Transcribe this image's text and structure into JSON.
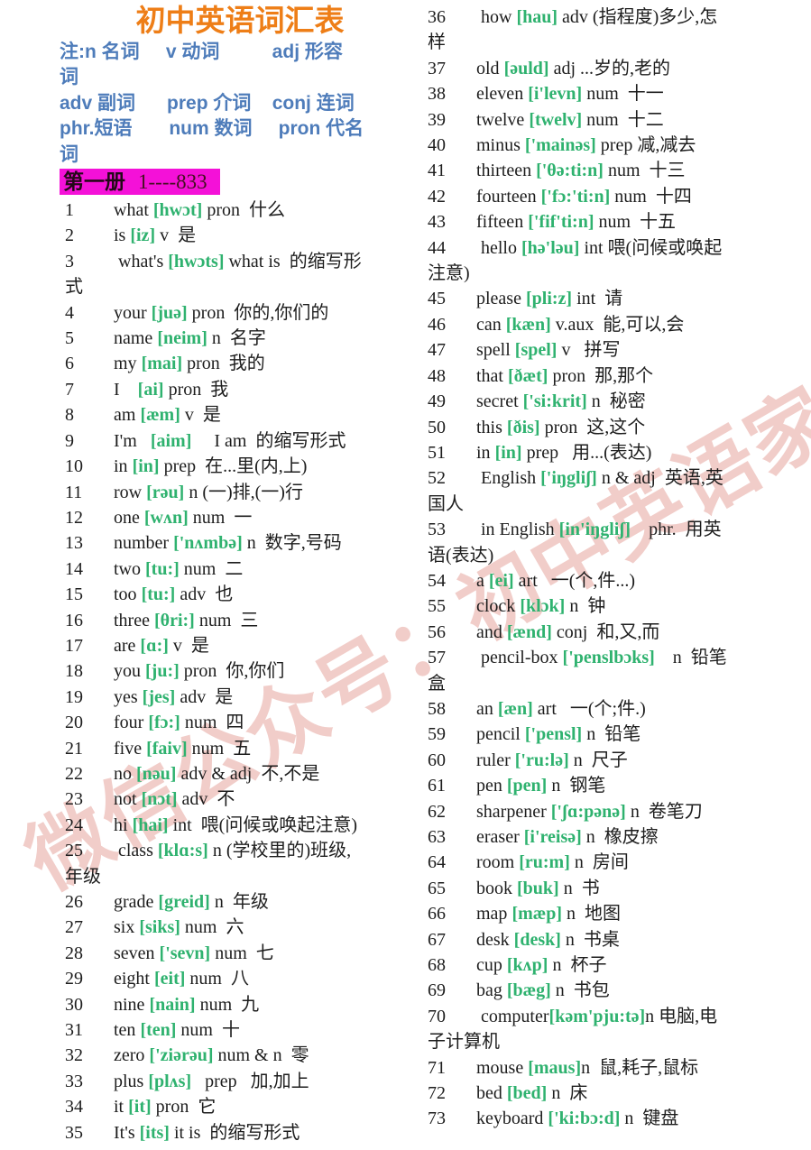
{
  "title": "初中英语词汇表",
  "watermark": "微信公众号：初中英语家长",
  "colors": {
    "title_orange": "#ee7e17",
    "notes_blue": "#4e7cba",
    "phonetic_green": "#2fb26f",
    "highlight_magenta": "#f411d8",
    "watermark_pink": "#db8278",
    "body_text": "#1d1d1d"
  },
  "notes_lines": [
    "注:n 名词     v 动词          adj 形容",
    "词",
    "adv 副词      prep 介词    conj 连词",
    "phr.短语       num 数词     pron 代名",
    "词"
  ],
  "volume": {
    "label": "第一册",
    "range": "1----833"
  },
  "left_entries": [
    {
      "num": "1",
      "pre": "what ",
      "phon": "[hwɔt]",
      "post": " pron  什么"
    },
    {
      "num": "2",
      "pre": "is ",
      "phon": "[iz]",
      "post": " v  是"
    },
    {
      "num": "3",
      "pre": " what's ",
      "phon": "[hwɔts]",
      "post": " what is  的缩写形\n式"
    },
    {
      "num": "4",
      "pre": "your ",
      "phon": "[juə]",
      "post": " pron  你的,你们的"
    },
    {
      "num": "5",
      "pre": "name ",
      "phon": "[neim]",
      "post": " n  名字"
    },
    {
      "num": "6",
      "pre": "my ",
      "phon": "[mai]",
      "post": " pron  我的"
    },
    {
      "num": "7",
      "pre": "I    ",
      "phon": "[ai]",
      "post": " pron  我"
    },
    {
      "num": "8",
      "pre": "am ",
      "phon": "[æm]",
      "post": " v  是"
    },
    {
      "num": "9",
      "pre": "I'm   ",
      "phon": "[aim]",
      "post": "     I am  的缩写形式"
    },
    {
      "num": "10",
      "pre": "in ",
      "phon": "[in]",
      "post": " prep  在...里(内,上)"
    },
    {
      "num": "11",
      "pre": "row ",
      "phon": "[rəu]",
      "post": " n (一)排,(一)行"
    },
    {
      "num": "12",
      "pre": "one ",
      "phon": "[wʌn]",
      "post": " num  一"
    },
    {
      "num": "13",
      "pre": "number ",
      "phon": "['nʌmbə]",
      "post": " n  数字,号码"
    },
    {
      "num": "14",
      "pre": "two ",
      "phon": "[tu:]",
      "post": " num  二"
    },
    {
      "num": "15",
      "pre": "too ",
      "phon": "[tu:]",
      "post": " adv  也"
    },
    {
      "num": "16",
      "pre": "three ",
      "phon": "[θri:]",
      "post": " num  三"
    },
    {
      "num": "17",
      "pre": "are ",
      "phon": "[ɑ:]",
      "post": " v  是"
    },
    {
      "num": "18",
      "pre": "you ",
      "phon": "[ju:]",
      "post": " pron  你,你们"
    },
    {
      "num": "19",
      "pre": "yes ",
      "phon": "[jes]",
      "post": " adv  是"
    },
    {
      "num": "20",
      "pre": "four ",
      "phon": "[fɔ:]",
      "post": " num  四"
    },
    {
      "num": "21",
      "pre": "five ",
      "phon": "[faiv]",
      "post": " num  五"
    },
    {
      "num": "22",
      "pre": "no ",
      "phon": "[nəu]",
      "post": " adv & adj  不,不是"
    },
    {
      "num": "23",
      "pre": "not ",
      "phon": "[nɔt]",
      "post": " adv  不"
    },
    {
      "num": "24",
      "pre": "hi ",
      "phon": "[hai]",
      "post": " int  喂(问候或唤起注意)"
    },
    {
      "num": "25",
      "pre": " class ",
      "phon": "[klɑ:s]",
      "post": " n (学校里的)班级,\n年级"
    },
    {
      "num": "26",
      "pre": "grade ",
      "phon": "[greid]",
      "post": " n  年级"
    },
    {
      "num": "27",
      "pre": "six ",
      "phon": "[siks]",
      "post": " num  六"
    },
    {
      "num": "28",
      "pre": "seven ",
      "phon": "['sevn]",
      "post": " num  七"
    },
    {
      "num": "29",
      "pre": "eight ",
      "phon": "[eit]",
      "post": " num  八"
    },
    {
      "num": "30",
      "pre": "nine ",
      "phon": "[nain]",
      "post": " num  九"
    },
    {
      "num": "31",
      "pre": "ten ",
      "phon": "[ten]",
      "post": " num  十"
    },
    {
      "num": "32",
      "pre": "zero ",
      "phon": "['ziərəu]",
      "post": " num & n  零"
    },
    {
      "num": "33",
      "pre": "plus ",
      "phon": "[plʌs]",
      "post": "   prep   加,加上"
    },
    {
      "num": "34",
      "pre": "it ",
      "phon": "[it]",
      "post": " pron  它"
    },
    {
      "num": "35",
      "pre": "It's ",
      "phon": "[its]",
      "post": " it is  的缩写形式"
    }
  ],
  "right_entries": [
    {
      "num": "36",
      "pre": " how ",
      "phon": "[hau]",
      "post": " adv (指程度)多少,怎\n样"
    },
    {
      "num": "37",
      "pre": "old ",
      "phon": "[əuld]",
      "post": " adj ...岁的,老的"
    },
    {
      "num": "38",
      "pre": "eleven ",
      "phon": "[i'levn]",
      "post": " num  十一"
    },
    {
      "num": "39",
      "pre": "twelve ",
      "phon": "[twelv]",
      "post": " num  十二"
    },
    {
      "num": "40",
      "pre": "minus ",
      "phon": "['mainəs]",
      "post": " prep 减,减去"
    },
    {
      "num": "41",
      "pre": "thirteen ",
      "phon": "['θə:ti:n]",
      "post": " num  十三"
    },
    {
      "num": "42",
      "pre": "fourteen ",
      "phon": "['fɔ:'ti:n]",
      "post": " num  十四"
    },
    {
      "num": "43",
      "pre": "fifteen ",
      "phon": "['fif'ti:n]",
      "post": " num  十五"
    },
    {
      "num": "44",
      "pre": " hello ",
      "phon": "[hə'ləu]",
      "post": " int 喂(问候或唤起\n注意)"
    },
    {
      "num": "45",
      "pre": "please ",
      "phon": "[pli:z]",
      "post": " int  请"
    },
    {
      "num": "46",
      "pre": "can ",
      "phon": "[kæn]",
      "post": " v.aux  能,可以,会"
    },
    {
      "num": "47",
      "pre": "spell ",
      "phon": "[spel]",
      "post": " v   拼写"
    },
    {
      "num": "48",
      "pre": "that ",
      "phon": "[ðæt]",
      "post": " pron  那,那个"
    },
    {
      "num": "49",
      "pre": "secret ",
      "phon": "['si:krit]",
      "post": " n  秘密"
    },
    {
      "num": "50",
      "pre": "this ",
      "phon": "[ðis]",
      "post": " pron  这,这个"
    },
    {
      "num": "51",
      "pre": "in ",
      "phon": "[in]",
      "post": " prep   用...(表达)"
    },
    {
      "num": "52",
      "pre": " English ",
      "phon": "['iŋgliʃ]",
      "post": " n & adj  英语,英\n国人"
    },
    {
      "num": "53",
      "pre": " in English ",
      "phon": "[in'iŋgliʃ]",
      "post": "    phr.  用英\n语(表达)"
    },
    {
      "num": "54",
      "pre": "a ",
      "phon": "[ei]",
      "post": " art   一(个,件...)"
    },
    {
      "num": "55",
      "pre": "clock ",
      "phon": "[klɔk]",
      "post": " n  钟"
    },
    {
      "num": "56",
      "pre": "and ",
      "phon": "[ænd]",
      "post": " conj  和,又,而"
    },
    {
      "num": "57",
      "pre": " pencil-box ",
      "phon": "['penslbɔks]",
      "post": "    n  铅笔\n盒"
    },
    {
      "num": "58",
      "pre": "an ",
      "phon": "[æn]",
      "post": " art   一(个;件.)"
    },
    {
      "num": "59",
      "pre": "pencil ",
      "phon": "['pensl]",
      "post": " n  铅笔"
    },
    {
      "num": "60",
      "pre": "ruler ",
      "phon": "['ru:lə]",
      "post": " n  尺子"
    },
    {
      "num": "61",
      "pre": "pen ",
      "phon": "[pen]",
      "post": " n  钢笔"
    },
    {
      "num": "62",
      "pre": "sharpener ",
      "phon": "['ʃɑ:pənə]",
      "post": " n  卷笔刀"
    },
    {
      "num": "63",
      "pre": "eraser ",
      "phon": "[i'reisə]",
      "post": " n  橡皮擦"
    },
    {
      "num": "64",
      "pre": "room ",
      "phon": "[ru:m]",
      "post": " n  房间"
    },
    {
      "num": "65",
      "pre": "book ",
      "phon": "[buk]",
      "post": " n  书"
    },
    {
      "num": "66",
      "pre": "map ",
      "phon": "[mæp]",
      "post": " n  地图"
    },
    {
      "num": "67",
      "pre": "desk ",
      "phon": "[desk]",
      "post": " n  书桌"
    },
    {
      "num": "68",
      "pre": "cup ",
      "phon": "[kʌp]",
      "post": " n  杯子"
    },
    {
      "num": "69",
      "pre": "bag ",
      "phon": "[bæg]",
      "post": " n  书包"
    },
    {
      "num": "70",
      "pre": " computer",
      "phon": "[kəm'pju:tə]",
      "post": "n 电脑,电\n子计算机"
    },
    {
      "num": "71",
      "pre": "mouse ",
      "phon": "[maus]",
      "post": "n  鼠,耗子,鼠标"
    },
    {
      "num": "72",
      "pre": "bed ",
      "phon": "[bed]",
      "post": " n  床"
    },
    {
      "num": "73",
      "pre": "keyboard ",
      "phon": "['ki:bɔ:d]",
      "post": " n  键盘"
    }
  ]
}
